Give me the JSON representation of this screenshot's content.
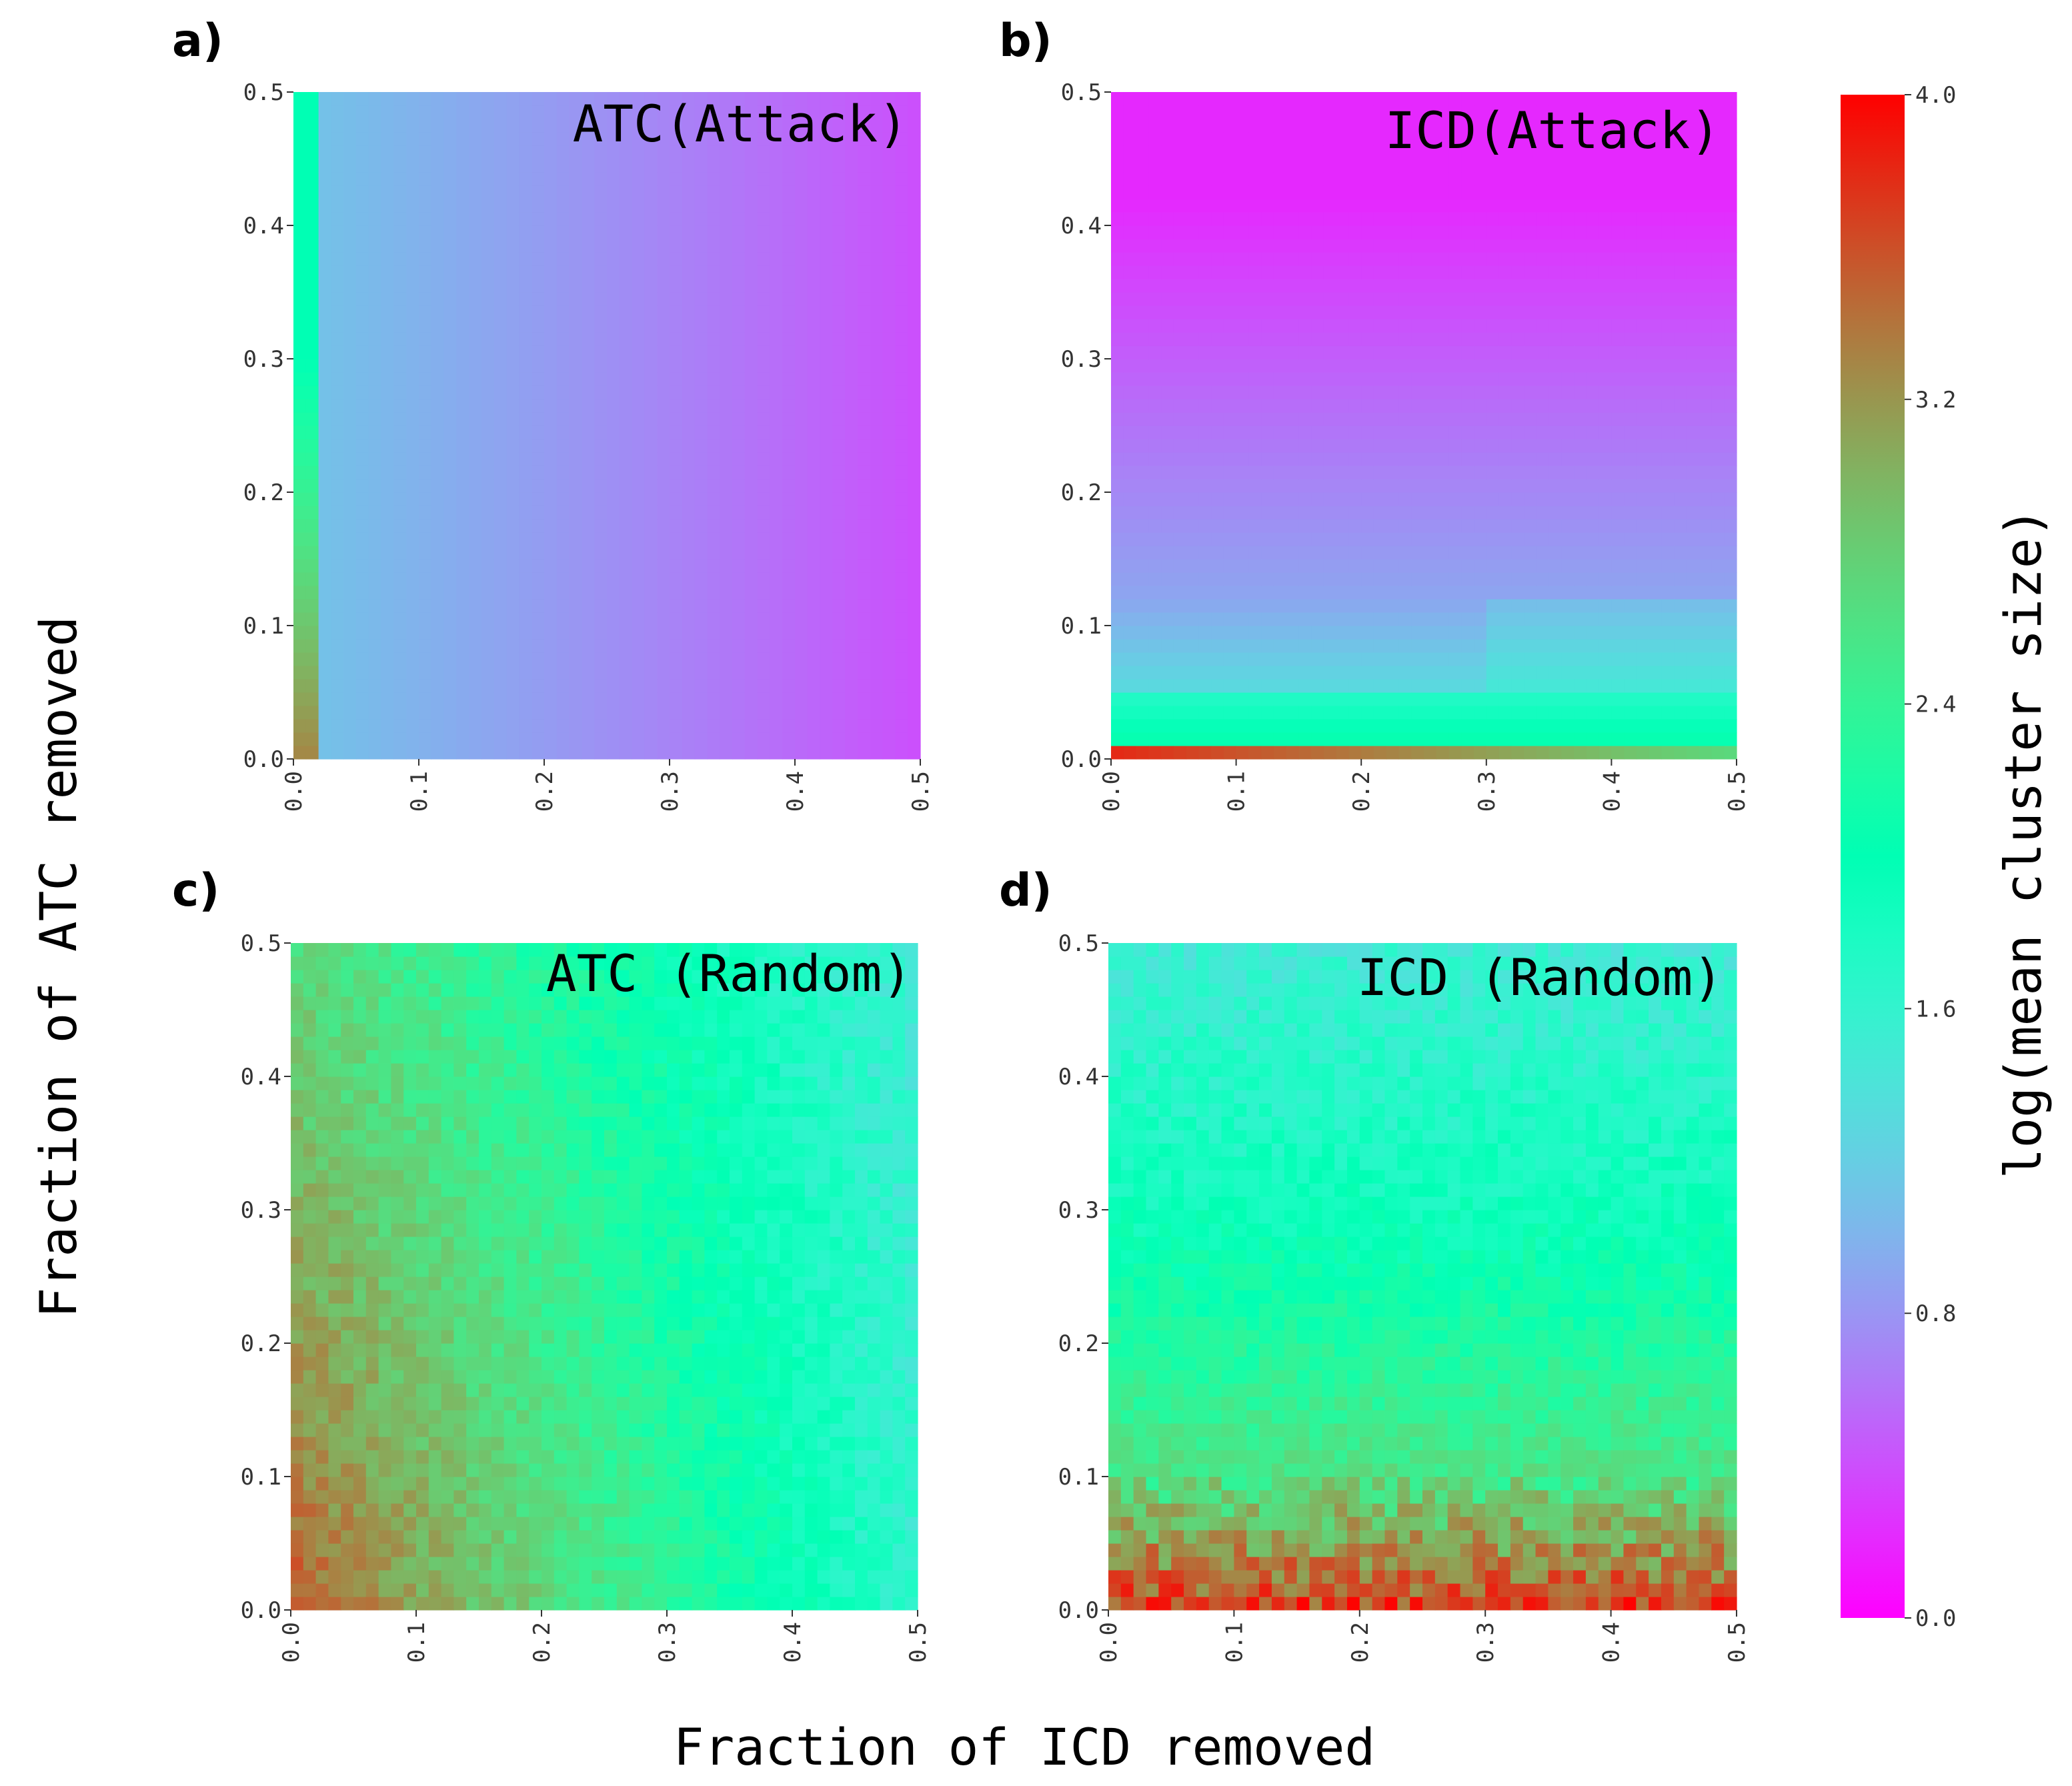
{
  "figure": {
    "xlabel": "Fraction of ICD removed",
    "ylabel": "Fraction of ATC removed"
  },
  "colorbar": {
    "label": "log(mean cluster size)",
    "range": [
      0.0,
      4.0
    ],
    "ticks": [
      "0.0",
      "0.8",
      "1.6",
      "2.4",
      "3.2",
      "4.0"
    ],
    "colormap": "rainbow"
  },
  "chart_data": [
    {
      "type": "heatmap",
      "panel": "a)",
      "title": "ATC(Attack)",
      "x_range": [
        0.0,
        0.5
      ],
      "y_range": [
        0.0,
        0.5
      ],
      "xticks": [
        "0.0",
        "0.1",
        "0.2",
        "0.3",
        "0.4",
        "0.5"
      ],
      "yticks": [
        "0.0",
        "0.1",
        "0.2",
        "0.3",
        "0.4",
        "0.5"
      ],
      "value_model": "attack_atc",
      "description_values": {
        "x0_low_y": 3.3,
        "x0_high_y": 2.0,
        "x_0_02": 1.1,
        "x_0_5": 0.4
      }
    },
    {
      "type": "heatmap",
      "panel": "b)",
      "title": "ICD(Attack)",
      "x_range": [
        0.0,
        0.5
      ],
      "y_range": [
        0.0,
        0.5
      ],
      "xticks": [
        "0.0",
        "0.1",
        "0.2",
        "0.3",
        "0.4",
        "0.5"
      ],
      "yticks": [
        "0.0",
        "0.1",
        "0.2",
        "0.3",
        "0.4",
        "0.5"
      ],
      "value_model": "attack_icd",
      "description_values": {
        "y0_x0": 3.8,
        "y0_x0_5": 2.7,
        "y_0_05": 1.7,
        "y_0_1": 0.9,
        "y_0_5": 0.2
      }
    },
    {
      "type": "heatmap",
      "panel": "c)",
      "title": "ATC (Random)",
      "x_range": [
        0.0,
        0.5
      ],
      "y_range": [
        0.0,
        0.5
      ],
      "xticks": [
        "0.0",
        "0.1",
        "0.2",
        "0.3",
        "0.4",
        "0.5"
      ],
      "yticks": [
        "0.0",
        "0.1",
        "0.2",
        "0.3",
        "0.4",
        "0.5"
      ],
      "value_model": "random_atc",
      "description_values": {
        "x0_y0": 3.5,
        "x0_y0_5": 2.7,
        "x0_5_y0": 1.6,
        "x0_5_y0_5": 1.5
      }
    },
    {
      "type": "heatmap",
      "panel": "d)",
      "title": "ICD (Random)",
      "x_range": [
        0.0,
        0.5
      ],
      "y_range": [
        0.0,
        0.5
      ],
      "xticks": [
        "0.0",
        "0.1",
        "0.2",
        "0.3",
        "0.4",
        "0.5"
      ],
      "yticks": [
        "0.0",
        "0.1",
        "0.2",
        "0.3",
        "0.4",
        "0.5"
      ],
      "value_model": "random_icd",
      "description_values": {
        "y0": 3.7,
        "y_0_1": 2.6,
        "y_0_3": 1.9,
        "y_0_5": 1.5
      }
    }
  ]
}
